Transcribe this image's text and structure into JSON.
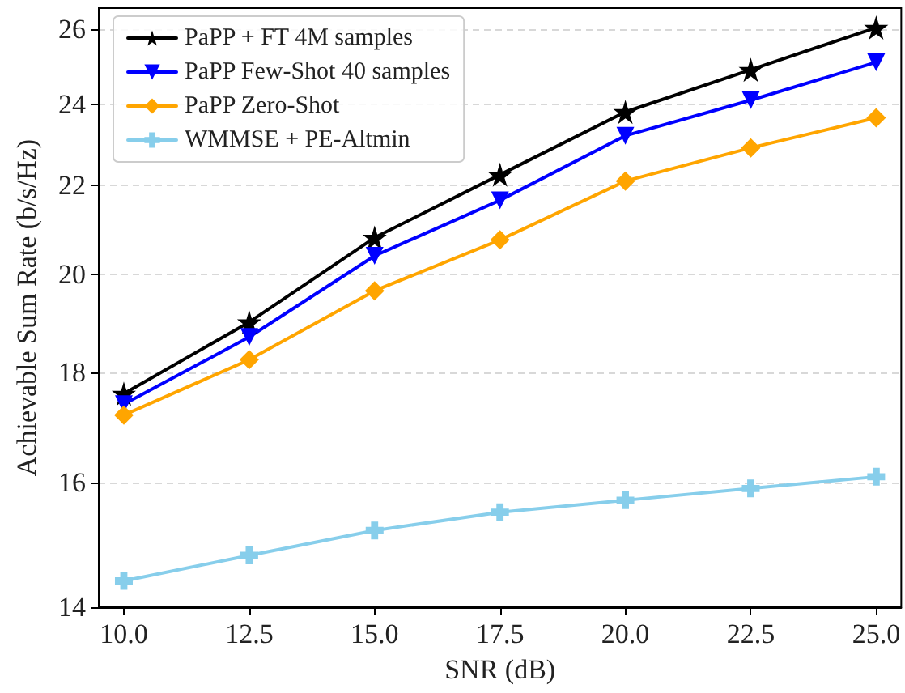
{
  "chart_data": {
    "type": "line",
    "xlabel": "SNR (dB)",
    "ylabel": "Achievable Sum Rate (b/s/Hz)",
    "x": [
      10,
      12.5,
      15,
      17.5,
      20,
      22.5,
      25
    ],
    "series": [
      {
        "name": "PaPP + FT 4M samples",
        "color": "#000000",
        "marker": "star",
        "values": [
          17.6,
          19.0,
          20.8,
          22.25,
          23.8,
          24.9,
          26.05
        ]
      },
      {
        "name": "PaPP Few-Shot 40 samples",
        "color": "#0000ff",
        "marker": "triangle",
        "values": [
          17.4,
          18.7,
          20.4,
          21.65,
          23.2,
          24.1,
          25.1
        ]
      },
      {
        "name": "PaPP Zero-Shot",
        "color": "#ffa500",
        "marker": "diamond",
        "values": [
          17.2,
          18.25,
          19.65,
          20.75,
          22.1,
          22.9,
          23.65
        ]
      },
      {
        "name": "WMMSE + PE-Altmin",
        "color": "#87ceeb",
        "marker": "cross",
        "values": [
          14.4,
          14.8,
          15.2,
          15.5,
          15.7,
          15.9,
          16.1
        ]
      }
    ],
    "xlim": [
      9.5,
      25.5
    ],
    "xticks": [
      {
        "value": 10,
        "label": "10.0"
      },
      {
        "value": 12.5,
        "label": "12.5"
      },
      {
        "value": 15,
        "label": "15.0"
      },
      {
        "value": 17.5,
        "label": "17.5"
      },
      {
        "value": 20,
        "label": "20.0"
      },
      {
        "value": 22.5,
        "label": "22.5"
      },
      {
        "value": 25,
        "label": "25.0"
      }
    ],
    "ylim": [
      14,
      26.6
    ],
    "yticks": [
      14,
      16,
      18,
      20,
      22,
      24,
      26
    ],
    "log": "y",
    "grid": "y",
    "legend": "top left",
    "line_style": "solid"
  }
}
